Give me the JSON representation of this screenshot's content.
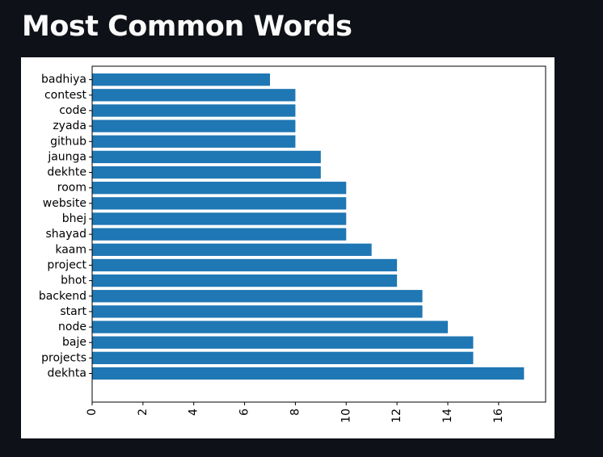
{
  "page": {
    "title": "Most Common Words"
  },
  "chart_data": {
    "type": "bar",
    "orientation": "horizontal",
    "categories": [
      "dekhta",
      "projects",
      "baje",
      "node",
      "start",
      "backend",
      "bhot",
      "project",
      "kaam",
      "shayad",
      "bhej",
      "website",
      "room",
      "dekhte",
      "jaunga",
      "github",
      "zyada",
      "code",
      "contest",
      "badhiya"
    ],
    "values": [
      17,
      15,
      15,
      14,
      13,
      13,
      12,
      12,
      11,
      10,
      10,
      10,
      10,
      9,
      9,
      8,
      8,
      8,
      8,
      7
    ],
    "x_ticks": [
      0,
      2,
      4,
      6,
      8,
      10,
      12,
      14,
      16
    ],
    "xlim": [
      0,
      17.85
    ],
    "bar_color": "#1f77b4",
    "title": "",
    "xlabel": "",
    "ylabel": "",
    "grid": false,
    "legend": "none"
  }
}
